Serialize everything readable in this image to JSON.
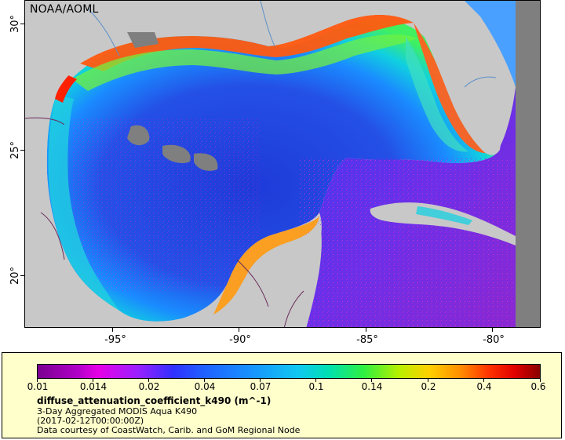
{
  "credit": "NOAA/AOML",
  "axes": {
    "y_ticks": [
      "30°",
      "25°",
      "20°"
    ],
    "x_ticks": [
      "-95°",
      "-90°",
      "-85°",
      "-80°"
    ]
  },
  "colorbar": {
    "ticks": [
      "0.01",
      "0.014",
      "0.02",
      "0.04",
      "0.07",
      "0.1",
      "0.14",
      "0.2",
      "0.4",
      "0.6"
    ]
  },
  "legend": {
    "variable": "diffuse_attenuation_coefficient_k490 (m^-1)",
    "product": "3-Day Aggregated MODIS Aqua K490",
    "time": "(2017-02-12T00:00:00Z)",
    "courtesy": "Data courtesy of CoastWatch, Carib. and GoM Regional Node"
  },
  "colors": {
    "land": "#c8c8c8",
    "no_data": "#7f7f7f",
    "legend_background": "#ffffcc",
    "open_water": "#2a45e0",
    "coastal_high": "#ff3000"
  }
}
